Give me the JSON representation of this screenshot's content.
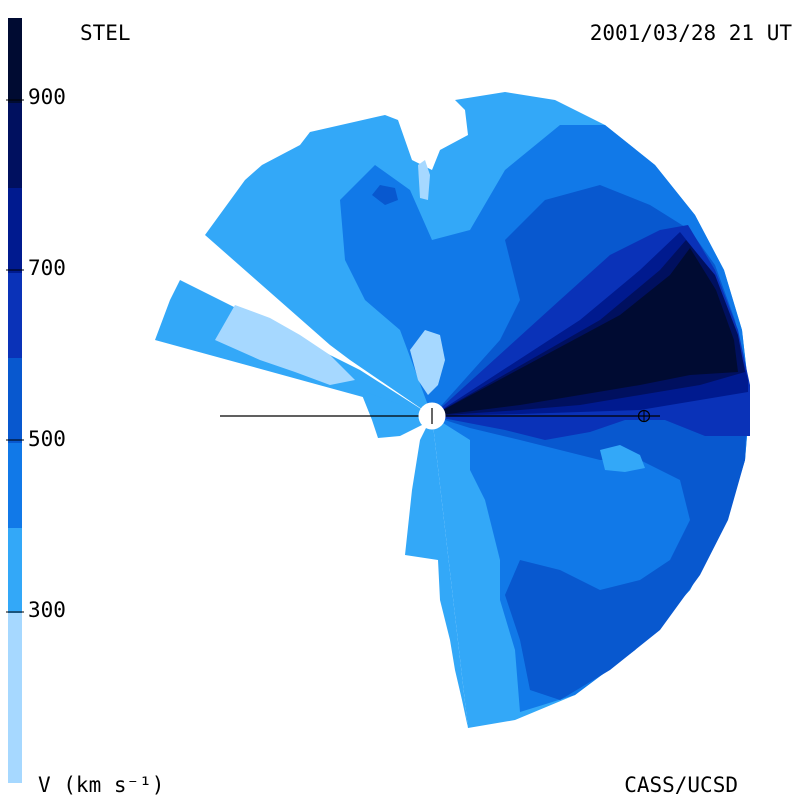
{
  "labels": {
    "left_title": "STEL",
    "timestamp": "2001/03/28 21 UT",
    "credit": "CASS/UCSD",
    "colorbar_unit": "V (km s⁻¹)"
  },
  "colorbar": {
    "ticks": [
      "900",
      "700",
      "500",
      "300"
    ],
    "bands": [
      "#000b32",
      "#00105f",
      "#001a8f",
      "#0a32b8",
      "#0858cf",
      "#1179e8",
      "#33a8f8",
      "#a6d8ff"
    ],
    "bands_order": "top-to-bottom"
  },
  "palette": {
    "v_300_400": "#33a8f8",
    "v_200_300": "#a6d8ff",
    "v_400_500": "#1179e8",
    "v_500_600": "#0858cf",
    "v_600_700": "#0a32b8",
    "v_700_800": "#001a8f",
    "v_800_900": "#00105f",
    "v_900_plus": "#000b32"
  },
  "markers": {
    "sun": "sun-disk",
    "earth": "earth-symbol"
  }
}
